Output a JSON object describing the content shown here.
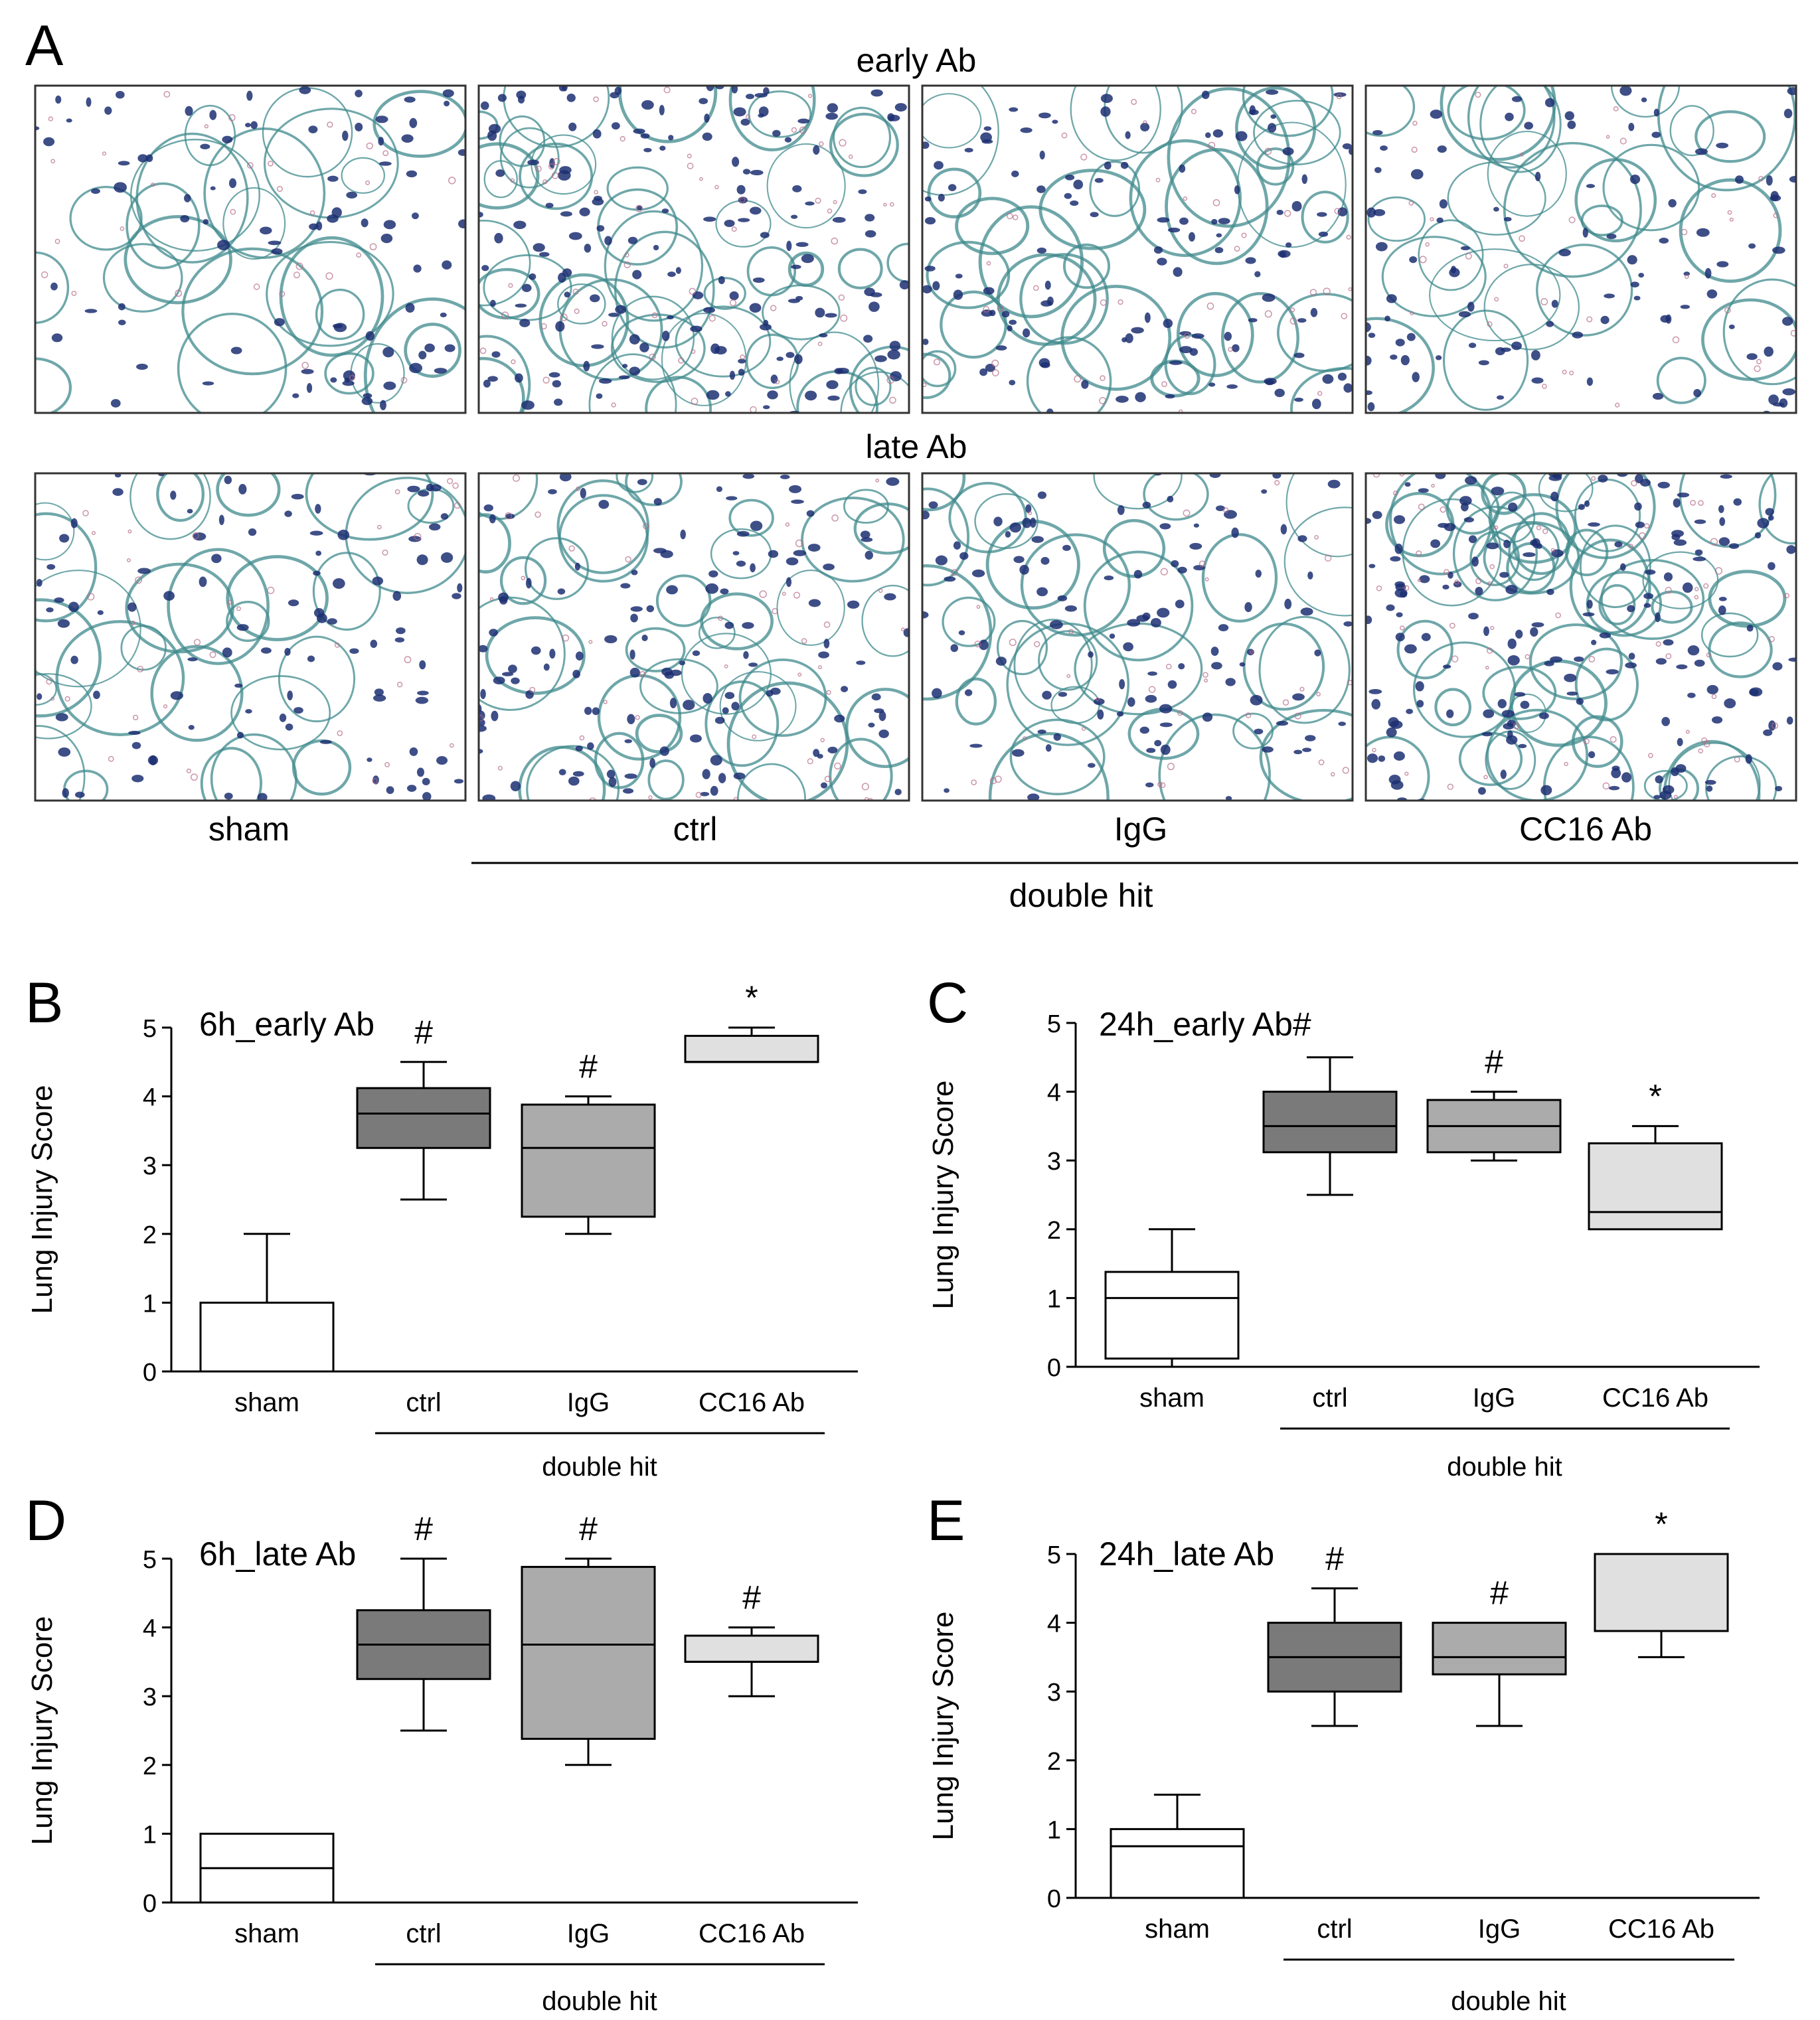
{
  "panelA": {
    "letter": "A",
    "row_titles": [
      "early Ab",
      "late Ab"
    ],
    "column_labels": [
      "sham",
      "ctrl",
      "IgG",
      "CC16 Ab"
    ],
    "group_label": "double hit",
    "image_colors": {
      "tissue": "#3f8a8c",
      "nuclei": "#1c2f72",
      "rbc": "#b56a86",
      "background": "#ffffff"
    }
  },
  "chart_data": [
    {
      "type": "box",
      "letter": "B",
      "title": "6h_early Ab",
      "ylabel": "Lung Injury Score",
      "ylim": [
        0,
        5
      ],
      "yticks": [
        0,
        1,
        2,
        3,
        4,
        5
      ],
      "categories": [
        "sham",
        "ctrl",
        "IgG",
        "CC16 Ab"
      ],
      "group_label": "double hit",
      "boxes": [
        {
          "min": 0,
          "q1": 0,
          "median": 0,
          "q3": 1,
          "max": 2,
          "color": "#ffffff"
        },
        {
          "min": 2.5,
          "q1": 3.25,
          "median": 3.75,
          "q3": 4.12,
          "max": 4.5,
          "color": "#7a7a7a"
        },
        {
          "min": 2,
          "q1": 2.25,
          "median": 3.25,
          "q3": 3.88,
          "max": 4,
          "color": "#ababab"
        },
        {
          "min": 4.5,
          "q1": 4.5,
          "median": 4.5,
          "q3": 4.88,
          "max": 5,
          "color": "#e0e0e0"
        }
      ],
      "annotations": [
        "",
        "#",
        "#",
        "*"
      ]
    },
    {
      "type": "box",
      "letter": "C",
      "title": "24h_early Ab#",
      "ylabel": "Lung Injury Score",
      "ylim": [
        0,
        5
      ],
      "yticks": [
        0,
        1,
        2,
        3,
        4,
        5
      ],
      "categories": [
        "sham",
        "ctrl",
        "IgG",
        "CC16 Ab"
      ],
      "group_label": "double hit",
      "boxes": [
        {
          "min": 0,
          "q1": 0.12,
          "median": 1,
          "q3": 1.38,
          "max": 2,
          "color": "#ffffff"
        },
        {
          "min": 2.5,
          "q1": 3.12,
          "median": 3.5,
          "q3": 4,
          "max": 4.5,
          "color": "#7a7a7a"
        },
        {
          "min": 3,
          "q1": 3.12,
          "median": 3.5,
          "q3": 3.88,
          "max": 4,
          "color": "#ababab"
        },
        {
          "min": 2,
          "q1": 2,
          "median": 2.25,
          "q3": 3.25,
          "max": 3.5,
          "color": "#e0e0e0"
        }
      ],
      "annotations": [
        "",
        "",
        "#",
        "*"
      ]
    },
    {
      "type": "box",
      "letter": "D",
      "title": "6h_late Ab",
      "ylabel": "Lung Injury Score",
      "ylim": [
        0,
        5
      ],
      "yticks": [
        0,
        1,
        2,
        3,
        4,
        5
      ],
      "categories": [
        "sham",
        "ctrl",
        "IgG",
        "CC16 Ab"
      ],
      "group_label": "double hit",
      "boxes": [
        {
          "min": 0,
          "q1": 0,
          "median": 0.5,
          "q3": 1,
          "max": 1,
          "color": "#ffffff"
        },
        {
          "min": 2.5,
          "q1": 3.25,
          "median": 3.75,
          "q3": 4.25,
          "max": 5,
          "color": "#7a7a7a"
        },
        {
          "min": 2,
          "q1": 2.38,
          "median": 3.75,
          "q3": 4.88,
          "max": 5,
          "color": "#ababab"
        },
        {
          "min": 3,
          "q1": 3.5,
          "median": 3.5,
          "q3": 3.88,
          "max": 4,
          "color": "#e0e0e0"
        }
      ],
      "annotations": [
        "",
        "#",
        "#",
        "#"
      ]
    },
    {
      "type": "box",
      "letter": "E",
      "title": "24h_late Ab",
      "ylabel": "Lung Injury Score",
      "ylim": [
        0,
        5
      ],
      "yticks": [
        0,
        1,
        2,
        3,
        4,
        5
      ],
      "categories": [
        "sham",
        "ctrl",
        "IgG",
        "CC16 Ab"
      ],
      "group_label": "double hit",
      "boxes": [
        {
          "min": 0,
          "q1": 0,
          "median": 0.75,
          "q3": 1,
          "max": 1.5,
          "color": "#ffffff"
        },
        {
          "min": 2.5,
          "q1": 3,
          "median": 3.5,
          "q3": 4,
          "max": 4.5,
          "color": "#7a7a7a"
        },
        {
          "min": 2.5,
          "q1": 3.25,
          "median": 3.5,
          "q3": 4,
          "max": 4,
          "color": "#ababab"
        },
        {
          "min": 3.5,
          "q1": 3.88,
          "median": 3.88,
          "q3": 5,
          "max": 5,
          "color": "#e0e0e0"
        }
      ],
      "annotations": [
        "",
        "#",
        "#",
        "*"
      ]
    }
  ]
}
